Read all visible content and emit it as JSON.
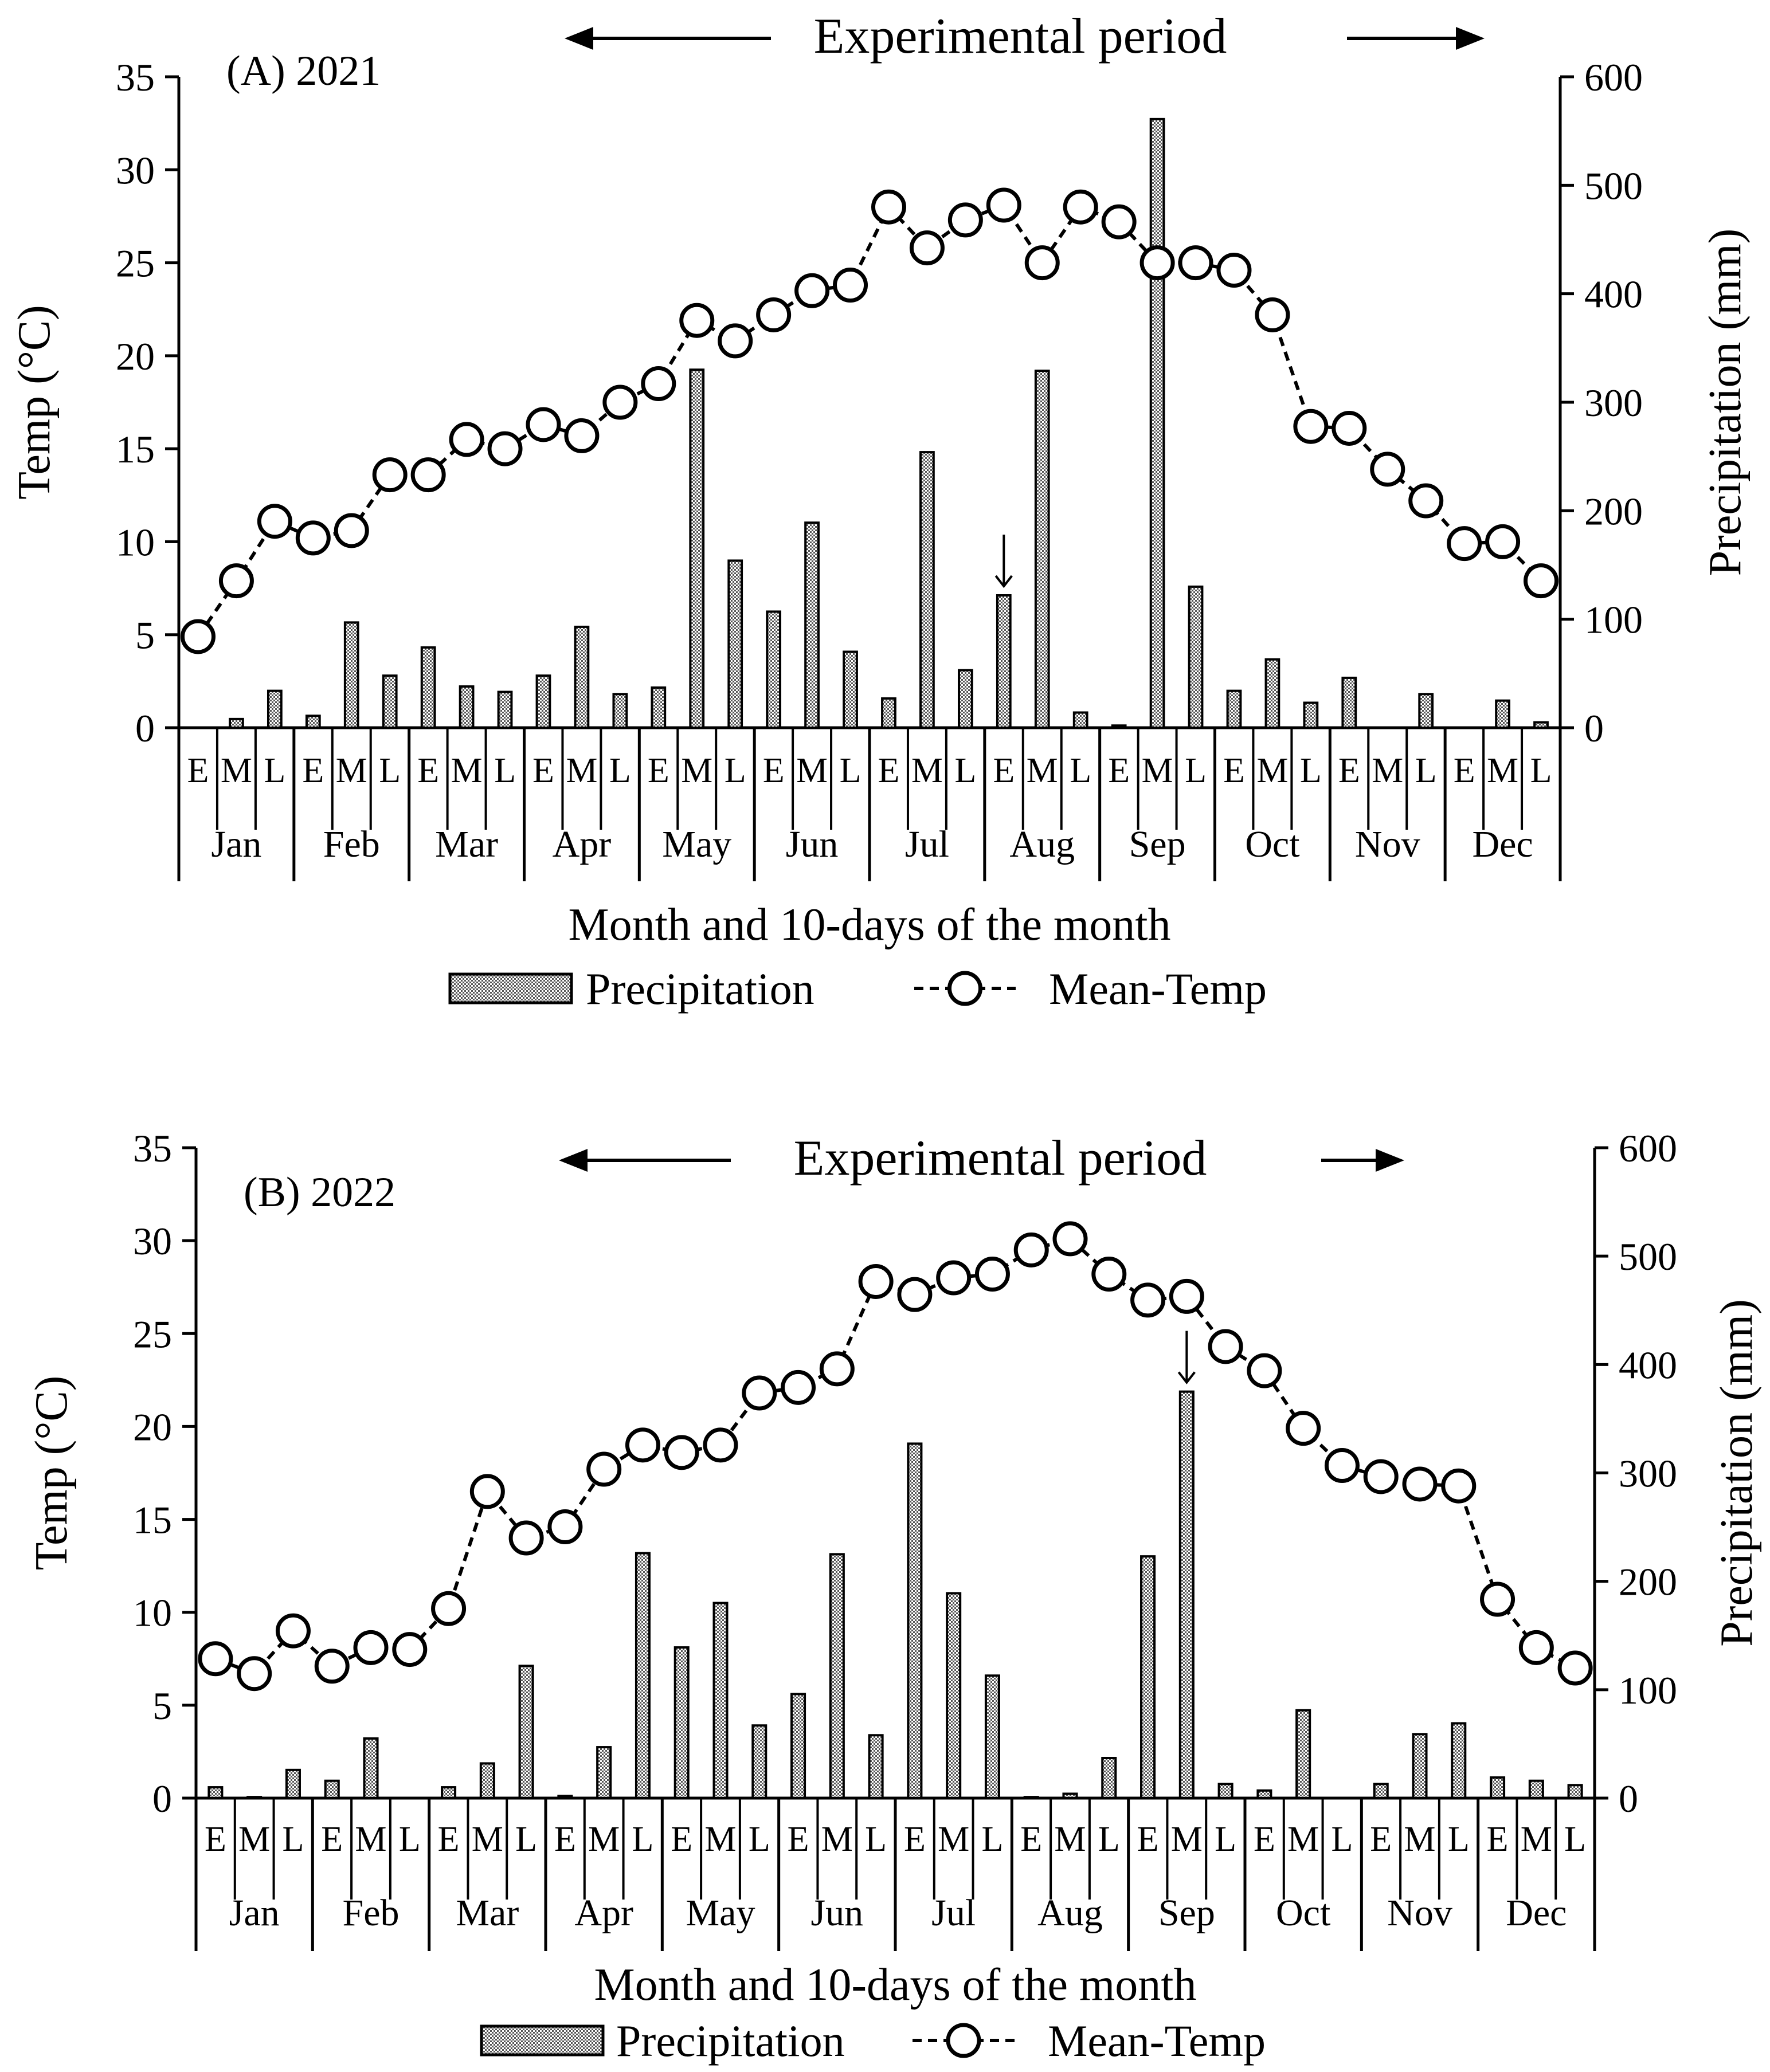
{
  "colors": {
    "ink": "#000000",
    "background": "#ffffff",
    "bar_fill": "#bdbdbd",
    "marker_fill": "#ffffff"
  },
  "chart_data": [
    {
      "type": "bar+line",
      "panel_label": "(A) 2021",
      "period_label": "Experimental period",
      "xlabel": "Month and 10-days of the month",
      "ylabel_left": "Temp (°C)",
      "ylabel_right": "Precipitation (mm)",
      "y_left_lim": [
        0,
        35
      ],
      "y_left_ticks": [
        "0",
        "5",
        "10",
        "15",
        "20",
        "25",
        "30",
        "35"
      ],
      "y_right_lim": [
        0,
        600
      ],
      "y_right_ticks": [
        "0",
        "100",
        "200",
        "300",
        "400",
        "500",
        "600"
      ],
      "dekad_labels": [
        "E",
        "M",
        "L"
      ],
      "months": [
        "Jan",
        "Feb",
        "Mar",
        "Apr",
        "May",
        "Jun",
        "Jul",
        "Aug",
        "Sep",
        "Oct",
        "Nov",
        "Dec"
      ],
      "legend": {
        "bar": "Precipitation",
        "line": "Mean-Temp"
      },
      "arrow_marker_index": 21,
      "series": [
        {
          "name": "Precipitation",
          "axis": "right",
          "kind": "bar",
          "values": [
            0,
            8,
            34,
            11,
            97,
            48,
            74,
            38,
            33,
            48,
            93,
            31,
            37,
            330,
            154,
            107,
            189,
            70,
            27,
            254,
            53,
            122,
            329,
            14,
            2,
            561,
            130,
            34,
            63,
            23,
            46,
            0,
            31,
            0,
            25,
            5
          ]
        },
        {
          "name": "Mean-Temp",
          "axis": "left",
          "kind": "line",
          "values": [
            4.9,
            7.9,
            11.1,
            10.2,
            10.6,
            13.6,
            13.6,
            15.5,
            15.0,
            16.3,
            15.7,
            17.5,
            18.5,
            21.9,
            20.8,
            22.2,
            23.5,
            23.8,
            28.0,
            25.8,
            27.3,
            28.1,
            25.0,
            28.0,
            27.2,
            25.0,
            25.0,
            24.6,
            22.2,
            16.2,
            16.1,
            13.9,
            12.2,
            9.9,
            10.0,
            7.9
          ]
        }
      ]
    },
    {
      "type": "bar+line",
      "panel_label": "(B) 2022",
      "period_label": "Experimental period",
      "xlabel": "Month and 10-days of the month",
      "ylabel_left": "Temp (°C)",
      "ylabel_right": "Precipitation (mm)",
      "y_left_lim": [
        0,
        35
      ],
      "y_left_ticks": [
        "0",
        "5",
        "10",
        "15",
        "20",
        "25",
        "30",
        "35"
      ],
      "y_right_lim": [
        0,
        600
      ],
      "y_right_ticks": [
        "0",
        "100",
        "200",
        "300",
        "400",
        "500",
        "600"
      ],
      "dekad_labels": [
        "E",
        "M",
        "L"
      ],
      "months": [
        "Jan",
        "Feb",
        "Mar",
        "Apr",
        "May",
        "Jun",
        "Jul",
        "Aug",
        "Sep",
        "Oct",
        "Nov",
        "Dec"
      ],
      "legend": {
        "bar": "Precipitation",
        "line": "Mean-Temp"
      },
      "arrow_marker_index": 25,
      "series": [
        {
          "name": "Precipitation",
          "axis": "right",
          "kind": "bar",
          "values": [
            10,
            1,
            26,
            16,
            55,
            0,
            10,
            32,
            122,
            2,
            47,
            226,
            139,
            180,
            67,
            96,
            225,
            58,
            327,
            189,
            113,
            1,
            4,
            37,
            223,
            375,
            13,
            7,
            81,
            0,
            13,
            59,
            69,
            19,
            16,
            12
          ]
        },
        {
          "name": "Mean-Temp",
          "axis": "left",
          "kind": "line",
          "values": [
            7.5,
            6.7,
            9.0,
            7.1,
            8.1,
            8.0,
            10.2,
            16.5,
            14.0,
            14.6,
            17.7,
            19.0,
            18.6,
            19.0,
            21.8,
            22.1,
            23.1,
            27.8,
            27.1,
            28.0,
            28.2,
            29.5,
            30.1,
            28.2,
            26.8,
            27.0,
            24.3,
            23.0,
            19.9,
            17.9,
            17.3,
            16.9,
            16.8,
            10.7,
            8.1,
            7.0
          ]
        }
      ]
    }
  ]
}
